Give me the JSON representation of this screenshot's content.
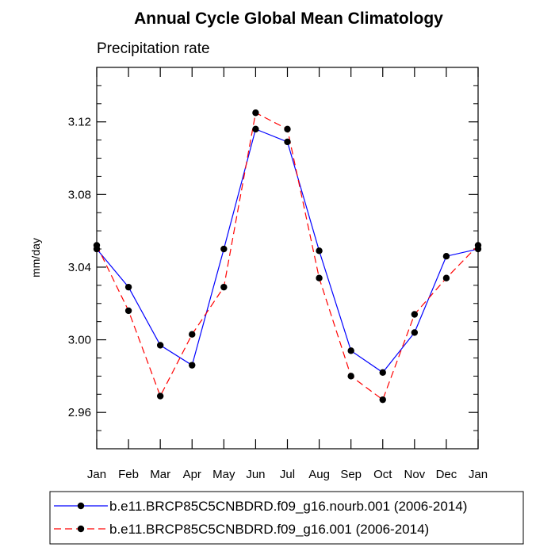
{
  "chart_data": {
    "type": "line",
    "title": "Annual Cycle Global Mean Climatology",
    "subtitle": "Precipitation rate",
    "xlabel": "",
    "ylabel": "mm/day",
    "ylim": [
      2.94,
      3.15
    ],
    "yticks": [
      "2.96",
      "3.00",
      "3.04",
      "3.08",
      "3.12"
    ],
    "categories": [
      "Jan",
      "Feb",
      "Mar",
      "Apr",
      "May",
      "Jun",
      "Jul",
      "Aug",
      "Sep",
      "Oct",
      "Nov",
      "Dec",
      "Jan"
    ],
    "series": [
      {
        "name": "b.e11.BRCP85C5CNBDRD.f09_g16.nourb.001 (2006-2014)",
        "color": "#0000ff",
        "dash": "solid",
        "values": [
          3.05,
          3.029,
          2.997,
          2.986,
          3.05,
          3.116,
          3.109,
          3.049,
          2.994,
          2.982,
          3.004,
          3.046,
          3.05
        ]
      },
      {
        "name": "b.e11.BRCP85C5CNBDRD.f09_g16.001 (2006-2014)",
        "color": "#ff0000",
        "dash": "dashed",
        "values": [
          3.052,
          3.016,
          2.969,
          3.003,
          3.029,
          3.125,
          3.116,
          3.034,
          2.98,
          2.967,
          3.014,
          3.034,
          3.052
        ]
      }
    ],
    "legend_position": "bottom"
  }
}
